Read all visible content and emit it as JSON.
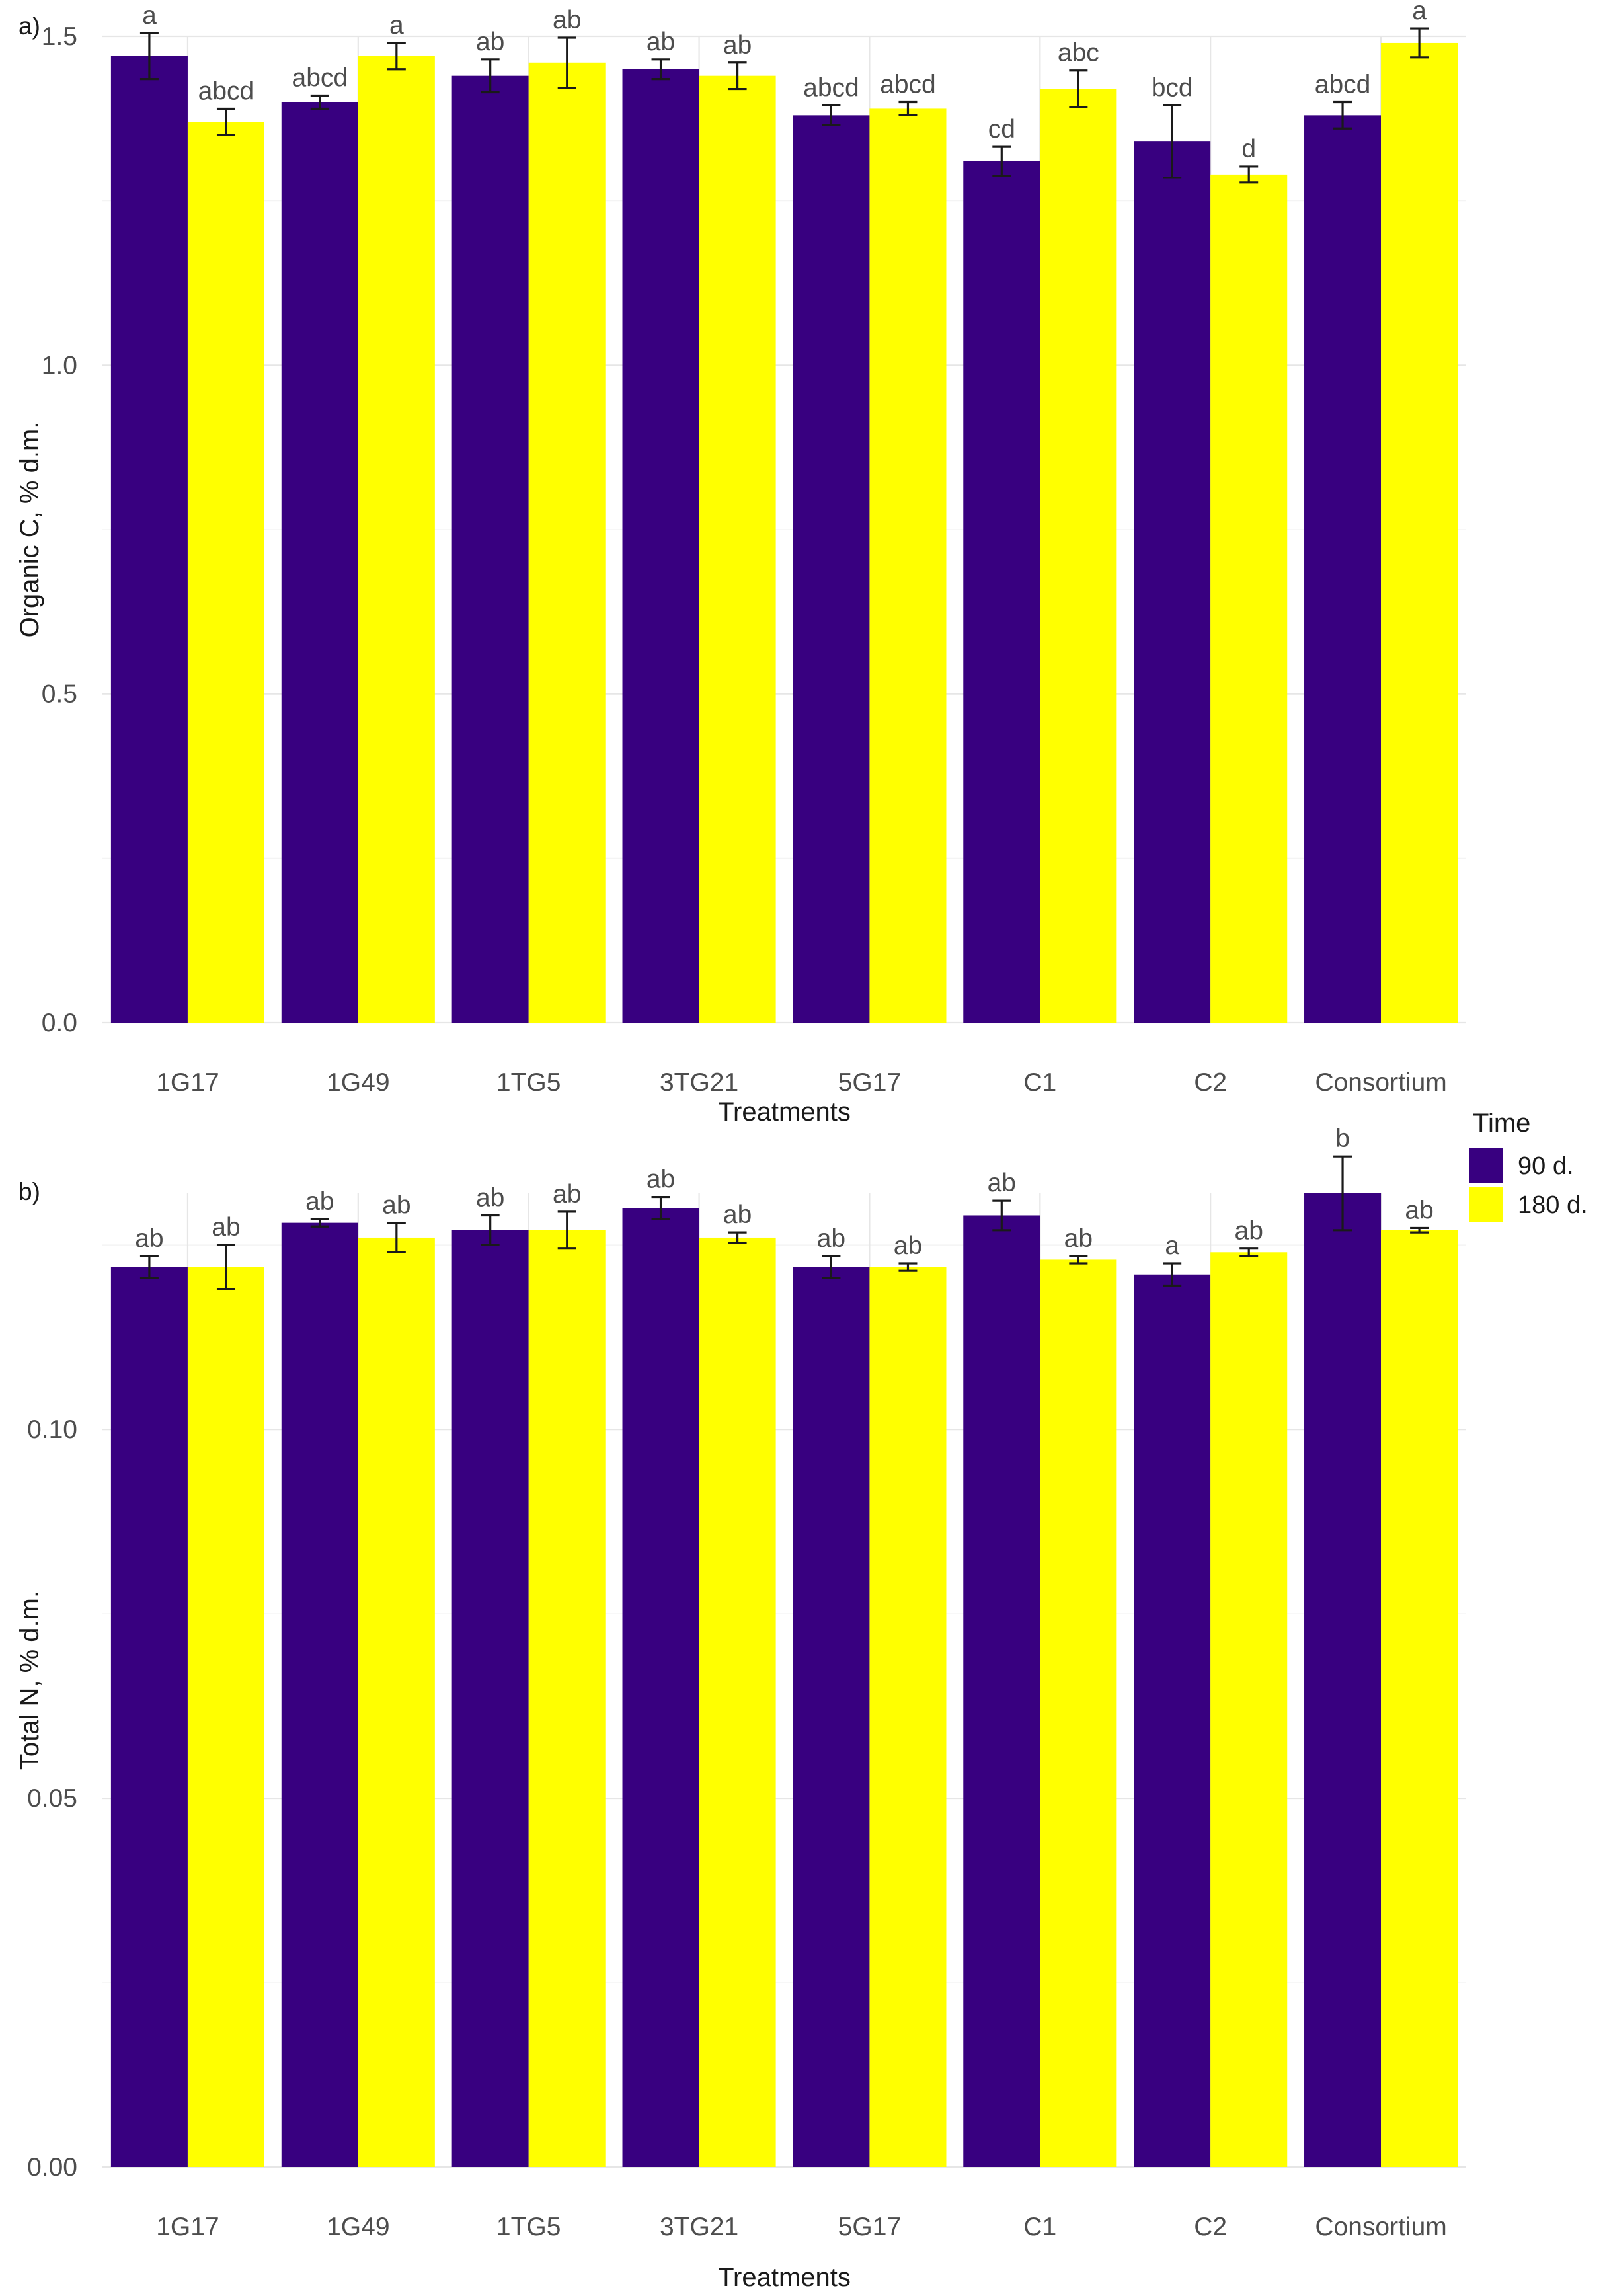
{
  "legend": {
    "title": "Time",
    "items": [
      {
        "label": "90 d.",
        "color": "#380080"
      },
      {
        "label": "180 d.",
        "color": "#FFFF00"
      }
    ]
  },
  "chart_data": [
    {
      "type": "bar",
      "panel_label": "a)",
      "xlabel": "Treatments",
      "ylabel": "Organic C, % d.m.",
      "categories": [
        "1G17",
        "1G49",
        "1TG5",
        "3TG21",
        "5G17",
        "C1",
        "C2",
        "Consortium"
      ],
      "ylim": [
        0,
        1.5
      ],
      "yticks": [
        "0.0",
        "0.5",
        "1.0",
        "1.5"
      ],
      "grid": true,
      "legend_position": "right",
      "series": [
        {
          "name": "90 d.",
          "color": "#380080",
          "values": [
            1.47,
            1.4,
            1.44,
            1.45,
            1.38,
            1.31,
            1.34,
            1.38
          ],
          "errors": [
            0.035,
            0.01,
            0.025,
            0.015,
            0.015,
            0.022,
            0.055,
            0.02
          ],
          "letters": [
            "a",
            "abcd",
            "ab",
            "ab",
            "abcd",
            "cd",
            "bcd",
            "abcd"
          ]
        },
        {
          "name": "180 d.",
          "color": "#FFFF00",
          "values": [
            1.37,
            1.47,
            1.46,
            1.44,
            1.39,
            1.42,
            1.29,
            1.49
          ],
          "errors": [
            0.02,
            0.02,
            0.038,
            0.02,
            0.01,
            0.028,
            0.012,
            0.022
          ],
          "letters": [
            "abcd",
            "a",
            "ab",
            "ab",
            "abcd",
            "abc",
            "d",
            "a"
          ]
        }
      ]
    },
    {
      "type": "bar",
      "panel_label": "b)",
      "xlabel": "Treatments",
      "ylabel": "Total N, % d.m.",
      "categories": [
        "1G17",
        "1G49",
        "1TG5",
        "3TG21",
        "5G17",
        "C1",
        "C2",
        "Consortium"
      ],
      "ylim": [
        0,
        0.132
      ],
      "yticks": [
        "0.00",
        "0.05",
        "0.10"
      ],
      "grid": true,
      "legend_position": "right",
      "series": [
        {
          "name": "90 d.",
          "color": "#380080",
          "values": [
            0.122,
            0.128,
            0.127,
            0.13,
            0.122,
            0.129,
            0.121,
            0.132
          ],
          "errors": [
            0.0015,
            0.0005,
            0.002,
            0.0015,
            0.0015,
            0.002,
            0.0015,
            0.005
          ],
          "letters": [
            "ab",
            "ab",
            "ab",
            "ab",
            "ab",
            "ab",
            "a",
            "b"
          ]
        },
        {
          "name": "180 d.",
          "color": "#FFFF00",
          "values": [
            0.122,
            0.126,
            0.127,
            0.126,
            0.122,
            0.123,
            0.124,
            0.127
          ],
          "errors": [
            0.003,
            0.002,
            0.0025,
            0.0007,
            0.0005,
            0.0005,
            0.0005,
            0.0003
          ],
          "letters": [
            "ab",
            "ab",
            "ab",
            "ab",
            "ab",
            "ab",
            "ab",
            "ab"
          ]
        }
      ]
    }
  ]
}
